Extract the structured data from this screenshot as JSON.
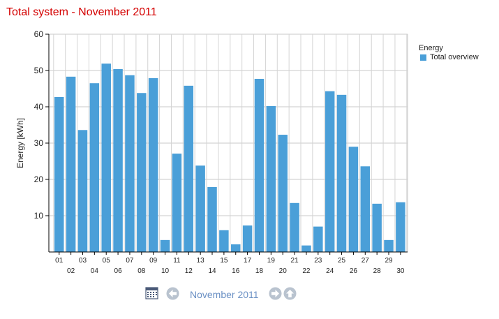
{
  "page": {
    "title": "Total system - November 2011"
  },
  "legend": {
    "title": "Energy",
    "items": [
      {
        "label": "Total overview",
        "color": "#4a9fd8"
      }
    ]
  },
  "nav": {
    "period_label": "November 2011",
    "icons": [
      "calendar-icon",
      "previous-arrow-icon",
      "next-arrow-icon",
      "up-arrow-icon"
    ]
  },
  "chart_data": {
    "type": "bar",
    "title": "Total system - November 2011",
    "xlabel": "",
    "ylabel": "Energy [kWh]",
    "ylim": [
      0,
      60
    ],
    "yticks": [
      10,
      20,
      30,
      40,
      50,
      60
    ],
    "grid": true,
    "legend_position": "top-right",
    "categories": [
      "01",
      "02",
      "03",
      "04",
      "05",
      "06",
      "07",
      "08",
      "09",
      "10",
      "11",
      "12",
      "13",
      "14",
      "15",
      "16",
      "17",
      "18",
      "19",
      "20",
      "21",
      "22",
      "23",
      "24",
      "25",
      "26",
      "27",
      "28",
      "29",
      "30"
    ],
    "series": [
      {
        "name": "Total overview",
        "color": "#4a9fd8",
        "values": [
          42.7,
          48.3,
          33.6,
          46.5,
          51.9,
          50.4,
          48.7,
          43.8,
          47.9,
          3.3,
          27.1,
          45.8,
          23.8,
          17.9,
          6.0,
          2.1,
          7.3,
          47.7,
          40.2,
          32.3,
          13.5,
          1.8,
          7.0,
          44.3,
          43.3,
          29.0,
          23.6,
          13.3,
          3.3,
          13.7
        ]
      }
    ]
  }
}
